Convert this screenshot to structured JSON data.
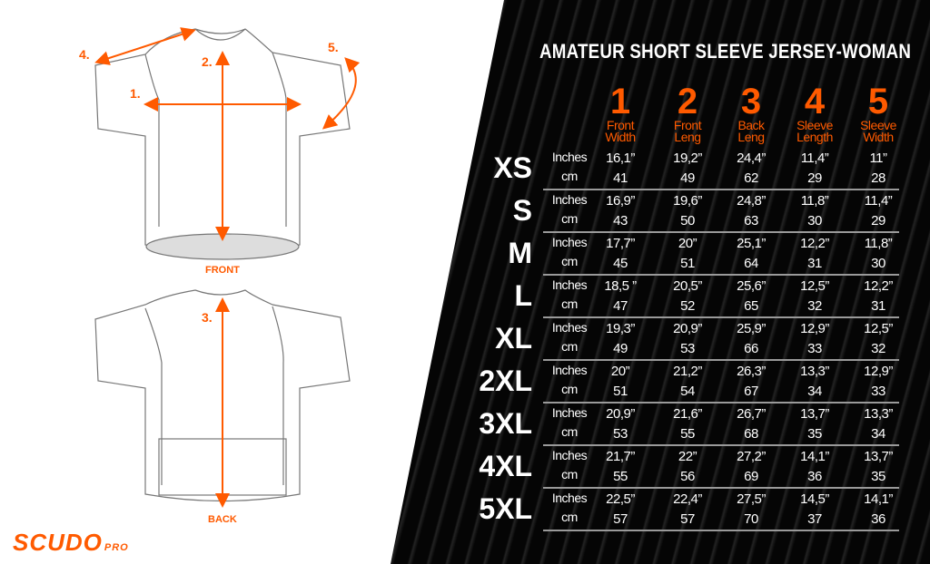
{
  "title": "AMATEUR SHORT SLEEVE JERSEY-WOMAN",
  "columns": [
    {
      "num": "1",
      "label1": "Front",
      "label2": "Width"
    },
    {
      "num": "2",
      "label1": "Front",
      "label2": "Leng"
    },
    {
      "num": "3",
      "label1": "Back",
      "label2": "Leng"
    },
    {
      "num": "4",
      "label1": "Sleeve",
      "label2": "Length"
    },
    {
      "num": "5",
      "label1": "Sleeve",
      "label2": "Width"
    }
  ],
  "units": {
    "inches": "Inches",
    "cm": "cm"
  },
  "rows": [
    {
      "size": "XS",
      "inches": [
        "16,1”",
        "19,2”",
        "24,4”",
        "11,4”",
        "11”"
      ],
      "cm": [
        "41",
        "49",
        "62",
        "29",
        "28"
      ]
    },
    {
      "size": "S",
      "inches": [
        "16,9”",
        "19,6”",
        "24,8”",
        "11,8”",
        "11,4”"
      ],
      "cm": [
        "43",
        "50",
        "63",
        "30",
        "29"
      ]
    },
    {
      "size": "M",
      "inches": [
        "17,7”",
        "20”",
        "25,1”",
        "12,2”",
        "11,8”"
      ],
      "cm": [
        "45",
        "51",
        "64",
        "31",
        "30"
      ]
    },
    {
      "size": "L",
      "inches": [
        "18,5 ”",
        "20,5”",
        "25,6”",
        "12,5”",
        "12,2”"
      ],
      "cm": [
        "47",
        "52",
        "65",
        "32",
        "31"
      ]
    },
    {
      "size": "XL",
      "inches": [
        "19,3”",
        "20,9”",
        "25,9”",
        "12,9”",
        "12,5”"
      ],
      "cm": [
        "49",
        "53",
        "66",
        "33",
        "32"
      ]
    },
    {
      "size": "2XL",
      "inches": [
        "20”",
        "21,2”",
        "26,3”",
        "13,3”",
        "12,9”"
      ],
      "cm": [
        "51",
        "54",
        "67",
        "34",
        "33"
      ]
    },
    {
      "size": "3XL",
      "inches": [
        "20,9”",
        "21,6”",
        "26,7”",
        "13,7”",
        "13,3”"
      ],
      "cm": [
        "53",
        "55",
        "68",
        "35",
        "34"
      ]
    },
    {
      "size": "4XL",
      "inches": [
        "21,7”",
        "22”",
        "27,2”",
        "14,1”",
        "13,7”"
      ],
      "cm": [
        "55",
        "56",
        "69",
        "36",
        "35"
      ]
    },
    {
      "size": "5XL",
      "inches": [
        "22,5”",
        "22,4”",
        "27,5”",
        "14,5”",
        "14,1”"
      ],
      "cm": [
        "57",
        "57",
        "70",
        "37",
        "36"
      ]
    }
  ],
  "diagram": {
    "front_caption": "FRONT",
    "back_caption": "BACK",
    "markers": {
      "m1": "1.",
      "m2": "2.",
      "m3": "3.",
      "m4": "4.",
      "m5": "5."
    }
  },
  "logo": {
    "name": "SCUDO",
    "suffix": "PRO"
  },
  "colors": {
    "accent": "#ff5a00",
    "panel": "#050505",
    "text": "#ffffff"
  }
}
